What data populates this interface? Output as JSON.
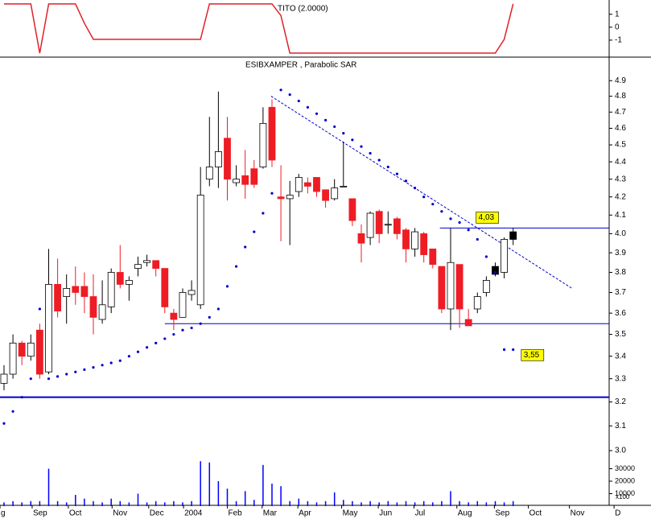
{
  "chart_data": [
    {
      "type": "line",
      "title": "TITO (2.0000)",
      "x": [
        0,
        1,
        2,
        3,
        4,
        5,
        6,
        7,
        8,
        9,
        10,
        11,
        12,
        13,
        14,
        15,
        16,
        17,
        18,
        19,
        20,
        21,
        22,
        23,
        24,
        25,
        26,
        27,
        28,
        29,
        30,
        31,
        32,
        33,
        34,
        35,
        36,
        37,
        38,
        39,
        40,
        41,
        42,
        43,
        44,
        45,
        46,
        47,
        48,
        49,
        50,
        51,
        52,
        53,
        54,
        55,
        56,
        57
      ],
      "values": [
        1.8,
        1.8,
        1.8,
        1.8,
        -2.0,
        1.8,
        1.8,
        1.8,
        1.8,
        0.3,
        -0.94,
        -0.94,
        -0.94,
        -0.94,
        -0.94,
        -0.94,
        -0.94,
        -0.94,
        -0.94,
        -0.94,
        -0.94,
        -0.94,
        -0.94,
        1.8,
        1.8,
        1.8,
        1.8,
        1.8,
        1.8,
        1.8,
        1.8,
        0.9,
        -2.0,
        -2.0,
        -2.0,
        -2.0,
        -2.0,
        -2.0,
        -2.0,
        -2.0,
        -2.0,
        -2.0,
        -2.0,
        -2.0,
        -2.0,
        -2.0,
        -2.0,
        -2.0,
        -2.0,
        -2.0,
        -2.0,
        -2.0,
        -2.0,
        -2.0,
        -2.0,
        -2.0,
        -0.94,
        1.8
      ],
      "color": "#e0202a",
      "xlim": [
        -0.45,
        67.75
      ],
      "ylim": [
        -2.25,
        2.1
      ],
      "yticks": [
        1,
        0,
        -1
      ]
    },
    {
      "type": "candlestick",
      "title": "ESIBXAMPER , Parabolic SAR",
      "x": [
        0,
        1,
        2,
        3,
        4,
        5,
        6,
        7,
        8,
        9,
        10,
        11,
        12,
        13,
        14,
        15,
        16,
        17,
        18,
        19,
        20,
        21,
        22,
        23,
        24,
        25,
        26,
        27,
        28,
        29,
        30,
        31,
        32,
        33,
        34,
        35,
        36,
        37,
        38,
        39,
        40,
        41,
        42,
        43,
        44,
        45,
        46,
        47,
        48,
        49,
        50,
        51,
        52,
        53,
        54,
        55,
        56,
        57
      ],
      "open": [
        3.28,
        3.32,
        3.46,
        3.4,
        3.52,
        3.33,
        3.74,
        3.68,
        3.73,
        3.73,
        3.68,
        3.57,
        3.63,
        3.8,
        3.74,
        3.82,
        3.85,
        3.86,
        3.82,
        3.6,
        3.58,
        3.69,
        3.64,
        4.3,
        4.37,
        4.54,
        4.28,
        4.32,
        4.36,
        4.37,
        4.73,
        4.2,
        4.19,
        4.23,
        4.28,
        4.31,
        4.24,
        4.19,
        4.26,
        4.19,
        4.0,
        3.98,
        4.12,
        4.05,
        4.08,
        4.02,
        3.92,
        4.0,
        3.92,
        3.83,
        3.62,
        3.84,
        3.57,
        3.62,
        3.7,
        3.83,
        3.8,
        3.97
      ],
      "high": [
        3.36,
        3.5,
        3.47,
        3.5,
        3.55,
        3.92,
        3.87,
        3.79,
        3.83,
        3.8,
        3.79,
        3.76,
        3.82,
        3.94,
        3.78,
        3.88,
        3.89,
        3.86,
        3.82,
        3.62,
        3.72,
        3.76,
        4.37,
        4.67,
        4.83,
        4.67,
        4.38,
        4.47,
        4.41,
        4.73,
        4.78,
        4.38,
        4.29,
        4.33,
        4.31,
        4.31,
        4.24,
        4.3,
        4.52,
        4.19,
        4.05,
        4.12,
        4.13,
        4.12,
        4.09,
        4.03,
        4.03,
        4.01,
        3.92,
        3.83,
        4.03,
        3.84,
        3.62,
        3.7,
        3.78,
        3.85,
        3.98,
        4.03
      ],
      "low": [
        3.25,
        3.3,
        3.36,
        3.38,
        3.3,
        3.32,
        3.58,
        3.55,
        3.64,
        3.6,
        3.5,
        3.55,
        3.6,
        3.72,
        3.66,
        3.78,
        3.83,
        3.78,
        3.6,
        3.52,
        3.58,
        3.66,
        3.62,
        4.26,
        4.25,
        4.18,
        4.26,
        4.19,
        4.25,
        4.36,
        4.37,
        3.96,
        3.94,
        4.2,
        4.22,
        4.2,
        4.14,
        4.18,
        4.26,
        4.04,
        3.85,
        3.94,
        3.95,
        4.0,
        3.97,
        3.85,
        3.88,
        3.85,
        3.82,
        3.6,
        3.52,
        3.53,
        3.54,
        3.6,
        3.68,
        3.78,
        3.77,
        3.94
      ],
      "close": [
        3.32,
        3.46,
        3.4,
        3.46,
        3.32,
        3.74,
        3.61,
        3.72,
        3.7,
        3.68,
        3.58,
        3.64,
        3.8,
        3.74,
        3.76,
        3.84,
        3.86,
        3.82,
        3.63,
        3.57,
        3.7,
        3.71,
        4.21,
        4.37,
        4.46,
        4.3,
        4.3,
        4.27,
        4.27,
        4.63,
        4.41,
        4.19,
        4.21,
        4.31,
        4.26,
        4.23,
        4.18,
        4.25,
        4.26,
        4.07,
        3.95,
        4.11,
        4.0,
        4.05,
        4.0,
        3.92,
        4.01,
        3.89,
        3.84,
        3.62,
        3.85,
        3.62,
        3.54,
        3.68,
        3.76,
        3.79,
        3.97,
        4.01
      ],
      "colors": [
        "#ffffff",
        "#ffffff",
        "#ee1c25",
        "#ffffff",
        "#ee1c25",
        "#ffffff",
        "#ee1c25",
        "#ffffff",
        "#ee1c25",
        "#ee1c25",
        "#ee1c25",
        "#ffffff",
        "#ffffff",
        "#ee1c25",
        "#ffffff",
        "#ffffff",
        "#ffffff",
        "#ee1c25",
        "#ee1c25",
        "#ee1c25",
        "#ffffff",
        "#ffffff",
        "#ffffff",
        "#ffffff",
        "#ffffff",
        "#ee1c25",
        "#ffffff",
        "#ee1c25",
        "#ee1c25",
        "#ffffff",
        "#ee1c25",
        "#ee1c25",
        "#ffffff",
        "#ffffff",
        "#ee1c25",
        "#ee1c25",
        "#ee1c25",
        "#ffffff",
        "#ffffff",
        "#ee1c25",
        "#ee1c25",
        "#ffffff",
        "#ee1c25",
        "#ffffff",
        "#ee1c25",
        "#ee1c25",
        "#ffffff",
        "#ee1c25",
        "#ee1c25",
        "#ee1c25",
        "#ffffff",
        "#ee1c25",
        "#ee1c25",
        "#ffffff",
        "#ffffff",
        "#000000",
        "#ffffff",
        "#000000"
      ],
      "sar": {
        "color": "#0000cc",
        "values": [
          3.11,
          3.16,
          3.22,
          3.3,
          3.62,
          3.3,
          3.31,
          3.32,
          3.33,
          3.34,
          3.35,
          3.36,
          3.37,
          3.38,
          3.4,
          3.42,
          3.44,
          3.46,
          3.48,
          3.5,
          3.52,
          3.53,
          3.55,
          3.58,
          3.62,
          3.73,
          3.83,
          3.93,
          4.01,
          4.11,
          4.22,
          4.84,
          4.81,
          4.77,
          4.73,
          4.69,
          4.65,
          4.61,
          4.57,
          4.53,
          4.49,
          4.45,
          4.41,
          4.37,
          4.33,
          4.29,
          4.25,
          4.2,
          4.16,
          4.12,
          4.08,
          4.06,
          4.02,
          3.97,
          3.88,
          3.8,
          3.43,
          3.43
        ]
      },
      "trendline": {
        "color": "#0000cc",
        "x": [
          29.9,
          63.6
        ],
        "y": [
          4.8,
          3.72
        ]
      },
      "hlines": [
        {
          "value": 4.03,
          "label": "4,03",
          "from": 48.8,
          "color": "#0000cc",
          "line_width": 1
        },
        {
          "value": 3.55,
          "label": "3,55",
          "from": 18.0,
          "color": "#0000cc",
          "line_width": 1
        },
        {
          "value": 3.22,
          "from": -0.45,
          "color": "#0000cc",
          "line_width": 2
        }
      ],
      "log_scale": true,
      "xlim": [
        -0.45,
        67.75
      ],
      "ylim": [
        2.79,
        5.05
      ],
      "yticks": [
        {
          "value": 3,
          "label": "3.0"
        },
        3.1,
        3.2,
        3.3,
        3.4,
        3.5,
        3.6,
        3.7,
        3.8,
        3.9,
        {
          "value": 4,
          "label": "4.0"
        },
        4.1,
        4.2,
        4.3,
        4.4,
        4.5,
        4.6,
        4.7,
        4.8,
        4.9
      ],
      "xticks": [
        {
          "value": -0.45,
          "label": "g"
        },
        {
          "value": 3.15,
          "label": "Sep"
        },
        {
          "value": 7.2,
          "label": "Oct"
        },
        {
          "value": 12.1,
          "label": "Nov"
        },
        {
          "value": 16.2,
          "label": "Dec"
        },
        {
          "value": 20.1,
          "label": "2004"
        },
        {
          "value": 25.0,
          "label": "Feb"
        },
        {
          "value": 28.9,
          "label": "Mar"
        },
        {
          "value": 32.9,
          "label": "Apr"
        },
        {
          "value": 37.8,
          "label": "May"
        },
        {
          "value": 41.9,
          "label": "Jun"
        },
        {
          "value": 45.9,
          "label": "Jul"
        },
        {
          "value": 50.7,
          "label": "Aug"
        },
        {
          "value": 54.9,
          "label": "Sep"
        },
        {
          "value": 58.7,
          "label": "Oct"
        },
        {
          "value": 63.3,
          "label": "Nov"
        },
        {
          "value": 68.3,
          "label": "D"
        }
      ]
    },
    {
      "type": "volume",
      "unit_label": "x100",
      "x": [
        0,
        1,
        2,
        3,
        4,
        5,
        6,
        7,
        8,
        9,
        10,
        11,
        12,
        13,
        14,
        15,
        16,
        17,
        18,
        19,
        20,
        21,
        22,
        23,
        24,
        25,
        26,
        27,
        28,
        29,
        30,
        31,
        32,
        33,
        34,
        35,
        36,
        37,
        38,
        39,
        40,
        41,
        42,
        43,
        44,
        45,
        46,
        47,
        48,
        49,
        50,
        51,
        52,
        53,
        54,
        55,
        56,
        57
      ],
      "values": [
        3000,
        4000,
        3000,
        4000,
        4000,
        30000,
        4000,
        3000,
        9000,
        6000,
        4000,
        3000,
        6000,
        4000,
        3000,
        10000,
        3000,
        4000,
        3000,
        4000,
        3000,
        4000,
        36000,
        35000,
        20000,
        14000,
        4000,
        12000,
        5000,
        33000,
        18000,
        16000,
        4000,
        6000,
        4000,
        3000,
        4000,
        11000,
        5000,
        4000,
        3000,
        4000,
        3000,
        4000,
        3000,
        4000,
        3000,
        4000,
        3000,
        4000,
        12000,
        4000,
        3000,
        4000,
        3000,
        4000,
        3000,
        4000
      ],
      "color": "#0000ff",
      "xlim": [
        -0.45,
        67.75
      ],
      "ylim": [
        0,
        40000
      ],
      "yticks": [
        10000,
        20000,
        30000
      ]
    }
  ]
}
